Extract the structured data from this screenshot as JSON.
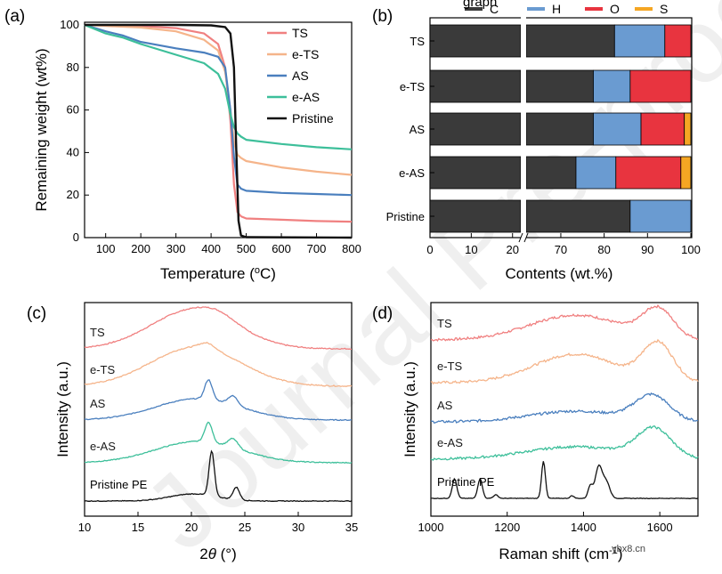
{
  "panels": {
    "a": "(a)",
    "b": "(b)",
    "c": "(c)",
    "d": "(d)"
  },
  "watermark": "Journal Pre-proof",
  "site_mark": "ybx8.cn",
  "top_cut_text": "graph",
  "colors": {
    "TS": "#f08080",
    "eTS": "#f5b48a",
    "AS": "#4a7fbe",
    "eAS": "#3dbf9a",
    "Pristine": "#111111",
    "C": "#3a3a3a",
    "H": "#6a9bd1",
    "O": "#e8343f",
    "S": "#f5a623"
  },
  "chart_data": [
    {
      "type": "line",
      "panel": "a",
      "title": "",
      "xlabel": "Temperature (oC)",
      "ylabel": "Remaining weight (wt%)",
      "xlim": [
        40,
        800
      ],
      "ylim": [
        0,
        100
      ],
      "xticks": [
        "100",
        "200",
        "300",
        "400",
        "500",
        "600",
        "700",
        "800"
      ],
      "yticks": [
        "0",
        "20",
        "40",
        "60",
        "80",
        "100"
      ],
      "series": [
        {
          "name": "TS",
          "x": [
            40,
            100,
            200,
            300,
            380,
            420,
            440,
            455,
            465,
            475,
            485,
            500,
            600,
            700,
            800
          ],
          "y": [
            100,
            99.8,
            99.5,
            98.5,
            96,
            91,
            80,
            55,
            25,
            12,
            10,
            9,
            8.4,
            7.8,
            7.5
          ]
        },
        {
          "name": "e-TS",
          "x": [
            40,
            100,
            200,
            300,
            380,
            420,
            440,
            455,
            465,
            475,
            485,
            500,
            600,
            700,
            800
          ],
          "y": [
            100,
            99.5,
            98.8,
            97,
            93,
            88,
            78,
            60,
            45,
            39,
            37.5,
            36,
            33,
            31,
            29.5
          ]
        },
        {
          "name": "AS",
          "x": [
            40,
            100,
            150,
            200,
            300,
            380,
            420,
            440,
            455,
            465,
            475,
            485,
            500,
            600,
            700,
            800
          ],
          "y": [
            100,
            97,
            95,
            92,
            89,
            87,
            85,
            80,
            60,
            38,
            25,
            23,
            22,
            21,
            20.5,
            20
          ]
        },
        {
          "name": "e-AS",
          "x": [
            40,
            100,
            150,
            200,
            300,
            380,
            420,
            440,
            455,
            465,
            475,
            485,
            500,
            600,
            700,
            800
          ],
          "y": [
            100,
            96,
            94,
            91,
            86,
            82,
            77,
            70,
            58,
            52,
            49,
            47.5,
            46,
            44,
            42.5,
            41.5
          ]
        },
        {
          "name": "Pristine",
          "x": [
            40,
            300,
            400,
            440,
            455,
            465,
            472,
            478,
            485,
            500,
            800
          ],
          "y": [
            100,
            100,
            99.8,
            99,
            96,
            80,
            40,
            8,
            1,
            0.2,
            0
          ]
        }
      ]
    },
    {
      "type": "bar",
      "panel": "b",
      "orientation": "horizontal-stacked",
      "xlabel": "Contents (wt.%)",
      "categories": [
        "TS",
        "e-TS",
        "AS",
        "e-AS",
        "Pristine"
      ],
      "xticks": [
        "0",
        "10",
        "20",
        "70",
        "80",
        "90",
        "100"
      ],
      "axis_break": [
        22,
        62
      ],
      "legend": [
        "C",
        "H",
        "O",
        "S"
      ],
      "series": [
        {
          "name": "C",
          "values": [
            82.4,
            77.5,
            77.5,
            73.5,
            86
          ]
        },
        {
          "name": "H",
          "values": [
            11.6,
            8.5,
            11,
            9.2,
            14
          ]
        },
        {
          "name": "O",
          "values": [
            6,
            14,
            10,
            15,
            0
          ]
        },
        {
          "name": "S",
          "values": [
            0,
            0,
            1.5,
            2.3,
            0
          ]
        }
      ]
    },
    {
      "type": "line",
      "panel": "c",
      "xlabel": "2θ (°)",
      "ylabel": "Intensity (a.u.)",
      "xlim": [
        10,
        35
      ],
      "xticks": [
        "10",
        "15",
        "20",
        "25",
        "30",
        "35"
      ],
      "series": [
        {
          "name": "TS",
          "label": "TS",
          "offset": 392,
          "peaks": [
            [
              20.2,
              4.0,
              44
            ],
            [
              22.5,
              1.5,
              6
            ]
          ],
          "noise": 0.6
        },
        {
          "name": "e-TS",
          "label": "e-TS",
          "offset": 434,
          "peaks": [
            [
              20.4,
              4.2,
              44
            ],
            [
              21.5,
              0.7,
              6
            ]
          ],
          "noise": 0.6
        },
        {
          "name": "AS",
          "label": "AS",
          "offset": 472,
          "peaks": [
            [
              20.6,
              4.0,
              24
            ],
            [
              21.6,
              0.35,
              22
            ],
            [
              23.9,
              0.45,
              10
            ]
          ],
          "noise": 0.5
        },
        {
          "name": "e-AS",
          "label": "e-AS",
          "offset": 520,
          "peaks": [
            [
              20.6,
              4.0,
              24
            ],
            [
              21.6,
              0.35,
              22
            ],
            [
              23.9,
              0.45,
              10
            ]
          ],
          "noise": 0.5
        },
        {
          "name": "Pristine",
          "label": "Pristine PE",
          "offset": 563,
          "peaks": [
            [
              20.2,
              2.2,
              8
            ],
            [
              21.9,
              0.25,
              50
            ],
            [
              24.2,
              0.3,
              14
            ]
          ],
          "noise": 0.4
        }
      ]
    },
    {
      "type": "line",
      "panel": "d",
      "xlabel": "Raman shift (cm-1)",
      "ylabel": "Intensity (a.u.)",
      "xlim": [
        1000,
        1700
      ],
      "xticks": [
        "1000",
        "1200",
        "1400",
        "1600"
      ],
      "series": [
        {
          "name": "TS",
          "label": "TS",
          "offset": 382,
          "peaks": [
            [
              1380,
              120,
              28
            ],
            [
              1595,
              40,
              32
            ]
          ],
          "noise": 1.4
        },
        {
          "name": "e-TS",
          "label": "e-TS",
          "offset": 430,
          "peaks": [
            [
              1380,
              110,
              32
            ],
            [
              1595,
              40,
              42
            ]
          ],
          "noise": 1.4
        },
        {
          "name": "AS",
          "label": "AS",
          "offset": 474,
          "peaks": [
            [
              1380,
              120,
              12
            ],
            [
              1580,
              45,
              28
            ]
          ],
          "noise": 1.4
        },
        {
          "name": "e-AS",
          "label": "e-AS",
          "offset": 516,
          "peaks": [
            [
              1380,
              130,
              14
            ],
            [
              1585,
              45,
              32
            ]
          ],
          "noise": 1.3
        },
        {
          "name": "Pristine",
          "label": "Pristine PE",
          "offset": 560,
          "peaks": [
            [
              1062,
              6,
              22
            ],
            [
              1129,
              6,
              22
            ],
            [
              1170,
              6,
              4
            ],
            [
              1295,
              5,
              42
            ],
            [
              1370,
              5,
              3
            ],
            [
              1418,
              6,
              14
            ],
            [
              1440,
              9,
              36
            ],
            [
              1460,
              9,
              18
            ]
          ],
          "noise": 0.3
        }
      ]
    }
  ],
  "labels": {
    "a_legend": [
      "TS",
      "e-TS",
      "AS",
      "e-AS",
      "Pristine"
    ],
    "a_xlabel_main": "Temperature (",
    "a_xlabel_sup": "o",
    "a_xlabel_end": "C)",
    "a_ylabel": "Remaining weight (wt%)",
    "b_xlabel": "Contents (wt.%)",
    "c_xlabel_pre": "2",
    "c_xlabel_theta": "θ",
    "c_xlabel_post": " (°)",
    "c_ylabel": "Intensity (a.u.)",
    "d_xlabel_main": "Raman shift (cm",
    "d_xlabel_sup": "-1",
    "d_xlabel_end": ")",
    "d_ylabel": "Intensity (a.u.)"
  }
}
